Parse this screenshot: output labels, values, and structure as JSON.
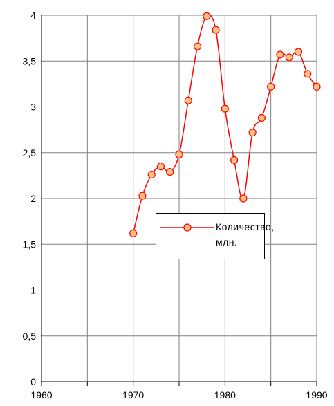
{
  "chart_data": {
    "type": "line",
    "x": [
      1970,
      1971,
      1972,
      1973,
      1974,
      1975,
      1976,
      1977,
      1978,
      1979,
      1980,
      1981,
      1982,
      1983,
      1984,
      1985,
      1986,
      1987,
      1988,
      1989,
      1990
    ],
    "series": [
      {
        "name": "Количество, млн.",
        "color": "#ff0000",
        "marker_fill": "#ffc080",
        "values": [
          1.62,
          2.03,
          2.26,
          2.35,
          2.29,
          2.48,
          3.07,
          3.66,
          3.99,
          3.84,
          2.98,
          2.42,
          2.0,
          2.72,
          2.88,
          3.22,
          3.57,
          3.54,
          3.6,
          3.36,
          3.22
        ]
      }
    ],
    "xlim": [
      1960,
      1990
    ],
    "xticks": [
      1960,
      1970,
      1980,
      1990
    ],
    "xminor": [
      1965,
      1975,
      1985
    ],
    "ylim": [
      0,
      4
    ],
    "yticks": [
      0,
      {
        "value": 0.5,
        "label": "0,5"
      },
      1,
      {
        "value": 1.5,
        "label": "1,5"
      },
      2,
      {
        "value": 2.5,
        "label": "2,5"
      },
      3,
      {
        "value": 3.5,
        "label": "3,5"
      },
      4
    ],
    "grid": true
  }
}
